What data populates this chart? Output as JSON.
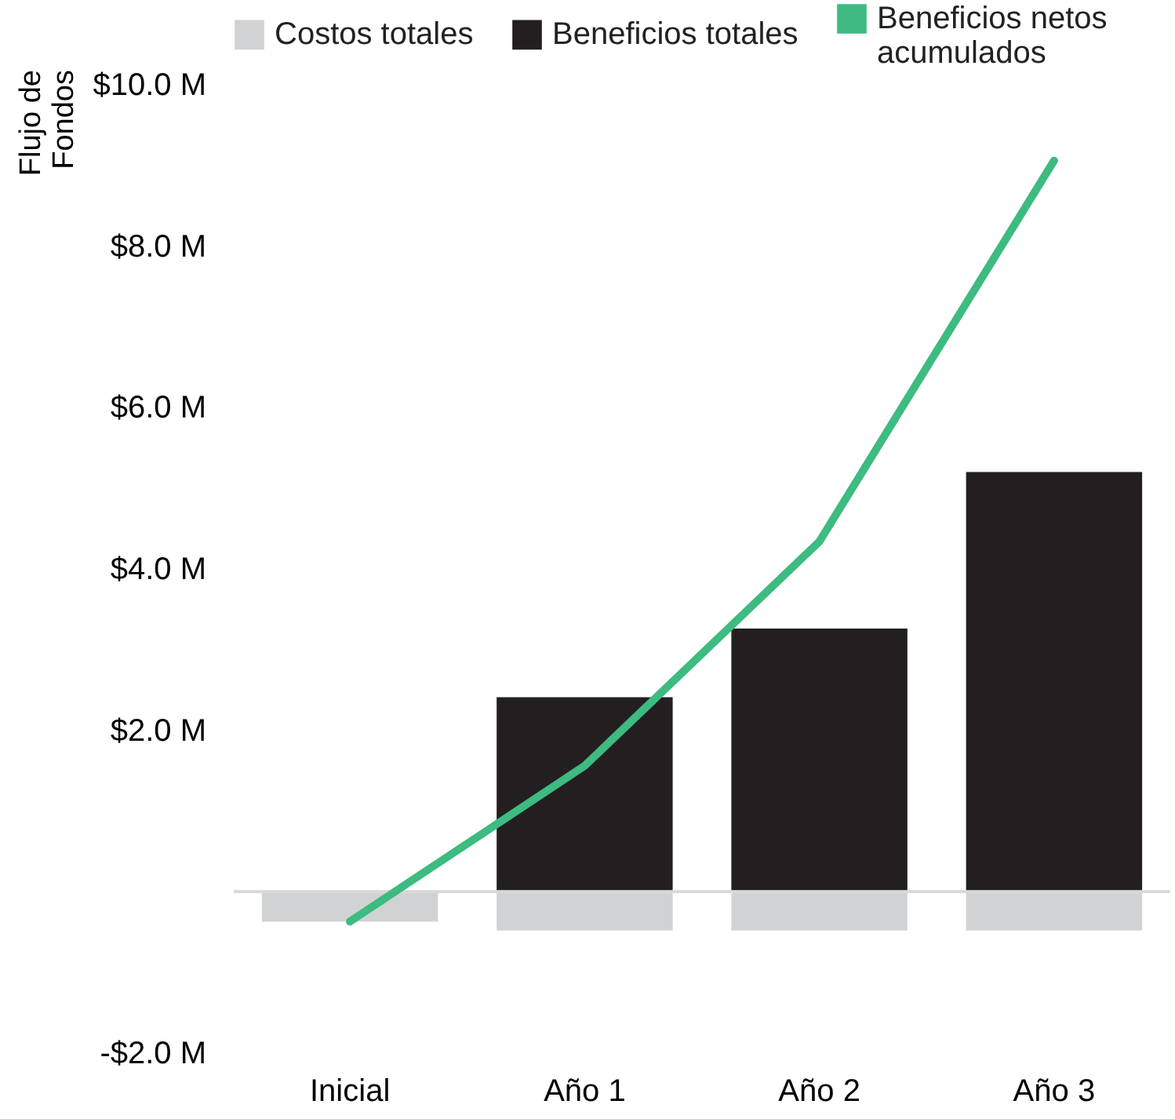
{
  "chart_data": {
    "type": "bar",
    "ylabel": "Flujo de Fondos",
    "categories": [
      "Inicial",
      "Año 1",
      "Año 2",
      "Año 3"
    ],
    "stacked": true,
    "series": [
      {
        "name": "Costos totales",
        "color": "#d1d2d4",
        "values": [
          -0.37,
          -0.48,
          -0.48,
          -0.48
        ]
      },
      {
        "name": "Beneficios totales",
        "color": "#231f20",
        "values": [
          0,
          2.41,
          3.26,
          5.2
        ]
      },
      {
        "name": "Beneficios netos acumulados",
        "type": "line",
        "color": "#3dbb80",
        "values": [
          -0.37,
          1.56,
          4.34,
          9.06
        ]
      }
    ],
    "ylim": [
      -2,
      10
    ],
    "yticks": [
      {
        "value": -2,
        "label": "-$2.0 M"
      },
      {
        "value": 2,
        "label": "$2.0 M"
      },
      {
        "value": 4,
        "label": "$4.0 M"
      },
      {
        "value": 6,
        "label": "$6.0 M"
      },
      {
        "value": 8,
        "label": "$8.0 M"
      },
      {
        "value": 10,
        "label": "$10.0 M"
      }
    ],
    "ref_lines": [
      {
        "axis": "y",
        "value": 0,
        "color": "#d9d9d9"
      }
    ],
    "grid": false,
    "legend": "top left"
  }
}
